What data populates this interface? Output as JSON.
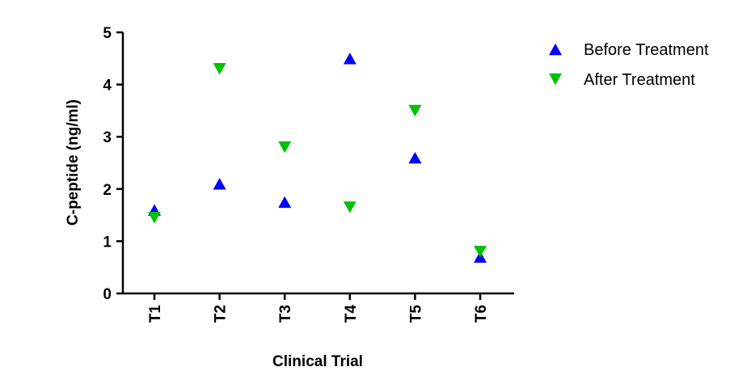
{
  "chart_data": {
    "type": "scatter",
    "title": "",
    "xlabel": "Clinical Trial",
    "ylabel": "C-peptide (ng/ml)",
    "categories": [
      "T1",
      "T2",
      "T3",
      "T4",
      "T5",
      "T6"
    ],
    "ylim": [
      0,
      5
    ],
    "yticks": [
      "0",
      "1",
      "2",
      "3",
      "4",
      "5"
    ],
    "grid": false,
    "legend_position": "top-right",
    "series": [
      {
        "name": "Before Treatment",
        "marker": "triangle-up",
        "color": "#0000ff",
        "values": [
          1.6,
          2.1,
          1.75,
          4.5,
          2.6,
          0.7
        ]
      },
      {
        "name": "After Treatment",
        "marker": "triangle-down",
        "color": "#00c000",
        "values": [
          1.45,
          4.3,
          2.8,
          1.65,
          3.5,
          0.8
        ]
      }
    ]
  }
}
